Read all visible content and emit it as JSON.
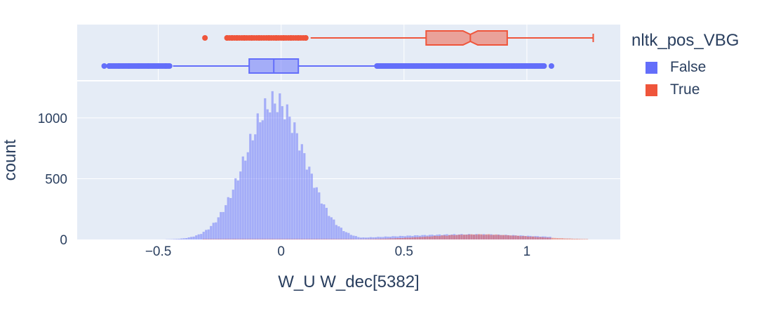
{
  "chart_data": {
    "type": "histogram",
    "xlabel": "W_U W_dec[5382]",
    "ylabel": "count",
    "legend_title": "nltk_pos_VBG",
    "legend_position": "right",
    "xlim": [
      -0.83,
      1.38
    ],
    "ylim": [
      0,
      1300
    ],
    "x_ticks": [
      -0.5,
      0,
      0.5,
      1
    ],
    "x_tick_labels": [
      "−0.5",
      "0",
      "0.5",
      "1"
    ],
    "y_ticks": [
      0,
      500,
      1000
    ],
    "y_tick_labels": [
      "0",
      "500",
      "1000"
    ],
    "grid": true,
    "bin_width": 0.01,
    "series": [
      {
        "name": "False",
        "color": "#636efa",
        "histogram": {
          "distribution": "roughly normal",
          "center": -0.03,
          "std": 0.12,
          "peak_count": 1230,
          "tail_max": 1.1,
          "tail_level": 45
        },
        "box": {
          "q1": -0.13,
          "median": -0.03,
          "q3": 0.07,
          "whisker_low": -0.44,
          "whisker_high": 0.39,
          "outliers_low": [
            -0.72,
            -0.7,
            -0.66,
            -0.62,
            -0.58,
            -0.54,
            -0.5,
            -0.47
          ],
          "outliers_high_range": [
            0.39,
            1.07
          ],
          "outlier_max": 1.1
        }
      },
      {
        "name": "True",
        "color": "#ef553b",
        "histogram": {
          "distribution": "broad, low",
          "range": [
            -0.32,
            1.25
          ],
          "peak_count": 45,
          "peak_center": 0.8
        },
        "box": {
          "q1": 0.59,
          "median": 0.77,
          "q3": 0.92,
          "whisker_low": 0.12,
          "whisker_high": 1.27,
          "notch": [
            0.74,
            0.8
          ],
          "outliers": [
            -0.31,
            -0.22,
            -0.2,
            -0.18,
            -0.15,
            -0.12,
            -0.09,
            -0.05,
            -0.02,
            0.01,
            0.04,
            0.07,
            0.1
          ]
        }
      }
    ]
  }
}
